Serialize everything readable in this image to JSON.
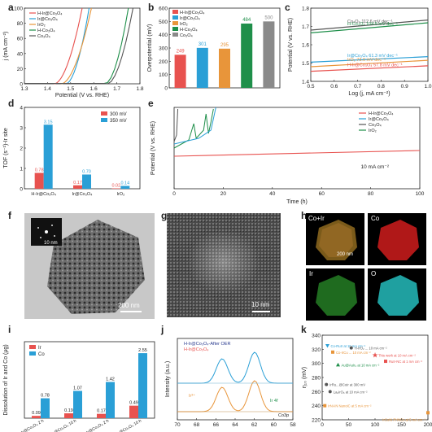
{
  "panel_labels": {
    "a": "a",
    "b": "b",
    "c": "c",
    "d": "d",
    "e": "e",
    "f": "f",
    "g": "g",
    "h": "h",
    "i": "i",
    "j": "j",
    "k": "k"
  },
  "colors": {
    "red": "#e8524f",
    "blue": "#2a9fd6",
    "orange": "#e8953a",
    "green": "#1f8f4a",
    "gray": "#8a8a8a",
    "navy": "#2a3b8f",
    "teal": "#26a69a"
  },
  "chart_data": [
    {
      "id": "a",
      "type": "line",
      "xlabel": "Potential (V vs. RHE)",
      "ylabel": "j (mA cm⁻²)",
      "xlim": [
        1.3,
        1.8
      ],
      "ylim": [
        0,
        100
      ],
      "xticks": [
        "1.3",
        "1.4",
        "1.5",
        "1.6",
        "1.7",
        "1.8"
      ],
      "yticks": [
        "0",
        "20",
        "40",
        "60",
        "80",
        "100"
      ],
      "series": [
        {
          "name": "H-Ir@Co₃O₄",
          "color": "#e8524f",
          "onset": 1.43,
          "end": 1.55
        },
        {
          "name": "Ir@Co₃O₄",
          "color": "#2a9fd6",
          "onset": 1.48,
          "end": 1.58
        },
        {
          "name": "IrO₂",
          "color": "#e8953a",
          "onset": 1.46,
          "end": 1.59
        },
        {
          "name": "H-Co₃O₄",
          "color": "#1f8f4a",
          "onset": 1.65,
          "end": 1.75
        },
        {
          "name": "Co₃O₄",
          "color": "#555555",
          "onset": 1.66,
          "end": 1.77
        }
      ]
    },
    {
      "id": "b",
      "type": "bar",
      "ylabel": "Overpotential (mV)",
      "ylim": [
        0,
        600
      ],
      "yticks": [
        "0",
        "100",
        "200",
        "300",
        "400",
        "500",
        "600"
      ],
      "categories": [
        "H-Ir@Co₃O₄",
        "Ir@Co₃O₄",
        "IrO₂",
        "H-Co₃O₄",
        "Co₃O₄"
      ],
      "values": [
        249,
        301,
        295,
        484,
        500
      ],
      "labels": [
        "249",
        "301",
        "295",
        "484",
        "500"
      ],
      "colors": [
        "#e8524f",
        "#2a9fd6",
        "#e8953a",
        "#1f8f4a",
        "#8a8a8a"
      ]
    },
    {
      "id": "c",
      "type": "line",
      "xlabel": "Log (j, mA cm⁻²)",
      "ylabel": "Potential (V vs. RHE)",
      "xlim": [
        0.5,
        1.0
      ],
      "ylim": [
        1.4,
        1.8
      ],
      "xticks": [
        "0.5",
        "0.6",
        "0.7",
        "0.8",
        "0.9",
        "1.0"
      ],
      "yticks": [
        "1.4",
        "1.5",
        "1.6",
        "1.7",
        "1.8"
      ],
      "series": [
        {
          "name": "Co₃O₄ 112.6 mV dec⁻¹",
          "color": "#555555",
          "y0": 1.68,
          "y1": 1.735
        },
        {
          "name": "H-Co₃O₄ 104.5 mV dec⁻¹",
          "color": "#1f8f4a",
          "y0": 1.665,
          "y1": 1.72
        },
        {
          "name": "Ir@Co₃O₄ 61.3 mV dec⁻¹",
          "color": "#2a9fd6",
          "y0": 1.505,
          "y1": 1.535
        },
        {
          "name": "IrO₂ 73.0 mV dec⁻¹",
          "color": "#e8953a",
          "y0": 1.48,
          "y1": 1.515
        },
        {
          "name": "H-Ir@Co₃O₄ 57.8 mV dec⁻¹",
          "color": "#e8524f",
          "y0": 1.455,
          "y1": 1.485
        }
      ]
    },
    {
      "id": "d",
      "type": "bar",
      "ylabel": "TOF (s⁻¹)-Ir site",
      "ylim": [
        0,
        4
      ],
      "yticks": [
        "0",
        "1",
        "2",
        "3",
        "4"
      ],
      "categories": [
        "H-Ir@Co₃O₄",
        "Ir@Co₃O₄",
        "IrO₂"
      ],
      "series": [
        {
          "name": "300 mV",
          "color": "#e8524f",
          "values": [
            0.78,
            0.17,
            0.02
          ],
          "labels": [
            "0.78",
            "0.17",
            "0.02"
          ]
        },
        {
          "name": "350 mV",
          "color": "#2a9fd6",
          "values": [
            3.15,
            0.7,
            0.14
          ],
          "labels": [
            "3.15",
            "0.70",
            "0.14"
          ]
        }
      ]
    },
    {
      "id": "e",
      "type": "line",
      "xlabel": "Time (h)",
      "ylabel": "Potential (V vs. RHE)",
      "xlim": [
        0,
        100
      ],
      "xticks": [
        "0",
        "20",
        "40",
        "60",
        "80",
        "100"
      ],
      "annotation": "10 mA cm⁻²",
      "series": [
        {
          "name": "H-Ir@Co₃O₄",
          "color": "#e8524f"
        },
        {
          "name": "Ir@Co₃O₄",
          "color": "#2a9fd6"
        },
        {
          "name": "Co₃O₄",
          "color": "#555555"
        },
        {
          "name": "IrO₂",
          "color": "#1f8f4a"
        }
      ]
    },
    {
      "id": "i",
      "type": "bar",
      "ylabel": "Dissolution of Ir and Co (μg)",
      "ylim": [
        0,
        3
      ],
      "categories": [
        "H-Ir@Co₃O₄ 2 h",
        "H-Ir@Co₃O₄ 10 h",
        "Ir@Co₃O₄ 2 h",
        "Ir@Co₃O₄ 10 h"
      ],
      "series": [
        {
          "name": "Ir",
          "color": "#e8524f",
          "values": [
            0.09,
            0.19,
            0.17,
            0.49
          ],
          "labels": [
            "0.09",
            "0.19",
            "0.17",
            "0.49"
          ]
        },
        {
          "name": "Co",
          "color": "#2a9fd6",
          "values": [
            0.78,
            1.07,
            1.42,
            2.55
          ],
          "labels": [
            "0.78",
            "1.07",
            "1.42",
            "2.55"
          ]
        }
      ]
    },
    {
      "id": "j",
      "type": "line",
      "xlabel": "",
      "ylabel": "Intensity (a.u.)",
      "xticks": [
        "70",
        "68",
        "66",
        "64",
        "62",
        "60",
        "58"
      ],
      "legend": [
        "H-Ir@Co₃O₄-After OER",
        "H-Ir@Co₃O₄"
      ],
      "annotations": [
        "Co3p",
        "Ir 4f",
        "Ir³⁺"
      ]
    },
    {
      "id": "k",
      "type": "scatter",
      "ylabel": "η₁₀ (mV)",
      "ylim": [
        220,
        340
      ],
      "yticks": [
        "220",
        "240",
        "260",
        "280",
        "300",
        "320",
        "340"
      ],
      "xticks": [
        "0",
        "50",
        "100",
        "150",
        "200"
      ],
      "points": [
        {
          "label": "Co-RuIr at 10 mA cm⁻²",
          "x": 10,
          "y": 235,
          "color": "#2a9fd6",
          "marker": "v"
        },
        {
          "label": "H-IrO₂ ... 10 mA cm⁻²",
          "x": 55,
          "y": 238,
          "color": "#555555",
          "marker": "o"
        },
        {
          "label": "Co-IrCu ... 10 mA cm⁻²",
          "x": 20,
          "y": 244,
          "color": "#e8953a",
          "marker": "s"
        },
        {
          "label": "This work at 10 mA cm⁻²",
          "x": 100,
          "y": 248,
          "color": "#e8524f",
          "marker": "*"
        },
        {
          "label": "Au@AuIr₂ at 10 mA cm⁻²",
          "x": 30,
          "y": 262,
          "color": "#1f8f4a",
          "marker": "^"
        },
        {
          "label": "RuIr-NC at 1 mA cm⁻²",
          "x": 120,
          "y": 257,
          "color": "#e8524f",
          "marker": "s"
        },
        {
          "label": "IrRu...@CoIr at 300 mV",
          "x": 8,
          "y": 290,
          "color": "#555555",
          "marker": "o"
        },
        {
          "label": "La₂IrO₆ at 10 mA cm⁻²",
          "x": 15,
          "y": 300,
          "color": "#555555",
          "marker": "o"
        },
        {
          "label": "IrNi-IN NanoIC at 5 mA cm⁻²",
          "x": 5,
          "y": 320,
          "color": "#e8953a",
          "marker": "s"
        },
        {
          "label": "IrCoNi PHNCs at 5 mA cm⁻²",
          "x": 200,
          "y": 330,
          "color": "#e8953a",
          "marker": "s"
        }
      ]
    }
  ],
  "images": {
    "f": {
      "scale": "200 nm",
      "inset_scale": "10 nm"
    },
    "g": {
      "scale": "10 nm"
    },
    "h": {
      "tiles": [
        "Co+Ir",
        "Co",
        "Ir",
        "O"
      ],
      "scale": "200 nm"
    }
  }
}
